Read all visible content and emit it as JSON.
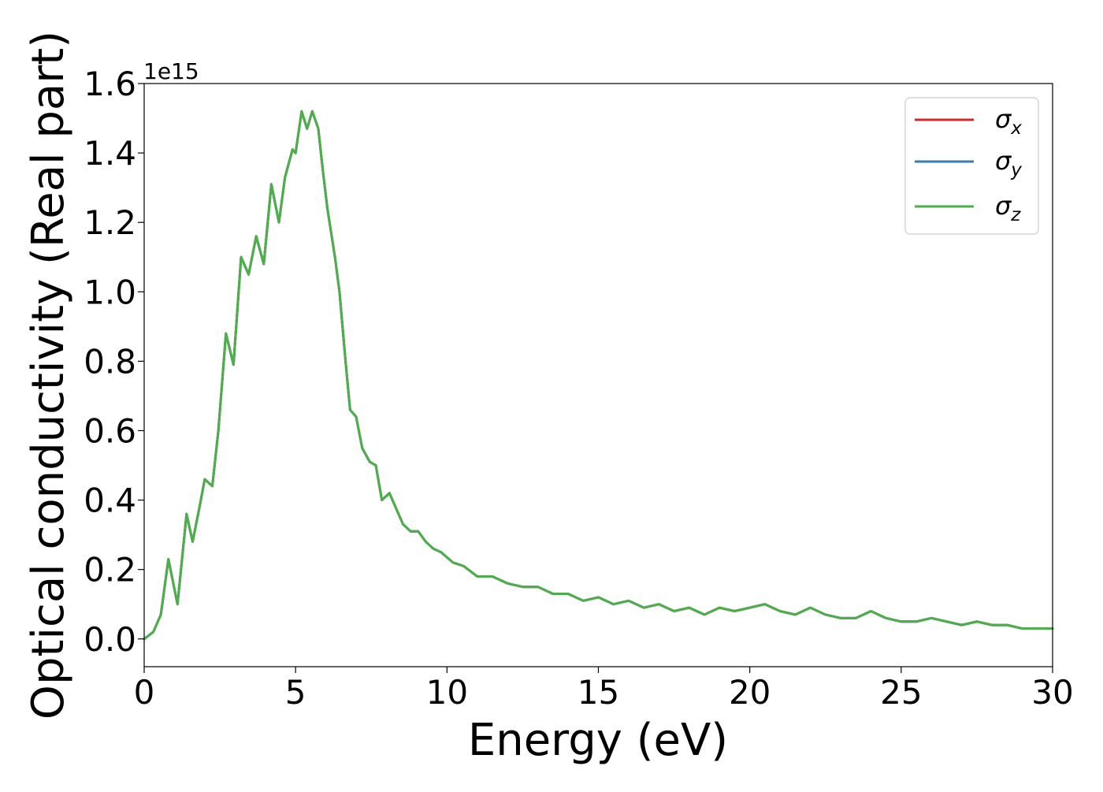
{
  "chart_data": {
    "type": "line",
    "xlabel": "Energy (eV)",
    "ylabel": "Optical conductivity (Real part)",
    "y_multiplier_label": "1e15",
    "xlim": [
      0,
      30
    ],
    "ylim": [
      -0.08,
      1.6
    ],
    "x_ticks": [
      0,
      5,
      10,
      15,
      20,
      25,
      30
    ],
    "x_tick_labels": [
      "0",
      "5",
      "10",
      "15",
      "20",
      "25",
      "30"
    ],
    "y_ticks": [
      0.0,
      0.2,
      0.4,
      0.6,
      0.8,
      1.0,
      1.2,
      1.4,
      1.6
    ],
    "y_tick_labels": [
      "0.0",
      "0.2",
      "0.4",
      "0.6",
      "0.8",
      "1.0",
      "1.2",
      "1.4",
      "1.6"
    ],
    "grid": false,
    "legend_position": "top-right",
    "x": [
      0,
      0.3,
      0.55,
      0.8,
      1.1,
      1.4,
      1.6,
      1.85,
      2.0,
      2.25,
      2.45,
      2.7,
      2.95,
      3.2,
      3.45,
      3.7,
      3.95,
      4.2,
      4.45,
      4.65,
      4.9,
      5.0,
      5.2,
      5.38,
      5.55,
      5.75,
      5.9,
      6.05,
      6.3,
      6.45,
      6.65,
      6.8,
      7.0,
      7.2,
      7.45,
      7.65,
      7.85,
      8.1,
      8.3,
      8.55,
      8.8,
      9.05,
      9.3,
      9.55,
      9.8,
      10.2,
      10.55,
      11.0,
      11.5,
      12.0,
      12.5,
      13.0,
      13.5,
      14.0,
      14.5,
      15.0,
      15.5,
      16.0,
      16.5,
      17.0,
      17.5,
      18.0,
      18.5,
      19.0,
      19.5,
      20.0,
      20.5,
      21.0,
      21.5,
      22.0,
      22.5,
      23.0,
      23.5,
      24.0,
      24.5,
      25.0,
      25.5,
      26.0,
      26.5,
      27.0,
      27.5,
      28.0,
      28.5,
      29.0,
      29.5,
      30.0
    ],
    "series": [
      {
        "name": "σx",
        "subscript": "x",
        "color": "#d62728",
        "values": [
          0.0,
          0.02,
          0.07,
          0.23,
          0.1,
          0.36,
          0.28,
          0.39,
          0.46,
          0.44,
          0.6,
          0.88,
          0.79,
          1.1,
          1.05,
          1.16,
          1.08,
          1.31,
          1.2,
          1.33,
          1.41,
          1.4,
          1.52,
          1.47,
          1.52,
          1.47,
          1.35,
          1.24,
          1.1,
          1.0,
          0.8,
          0.66,
          0.64,
          0.55,
          0.51,
          0.5,
          0.4,
          0.42,
          0.38,
          0.33,
          0.31,
          0.31,
          0.28,
          0.26,
          0.25,
          0.22,
          0.21,
          0.18,
          0.18,
          0.16,
          0.15,
          0.15,
          0.13,
          0.13,
          0.11,
          0.12,
          0.1,
          0.11,
          0.09,
          0.1,
          0.08,
          0.09,
          0.07,
          0.09,
          0.08,
          0.09,
          0.1,
          0.08,
          0.07,
          0.09,
          0.07,
          0.06,
          0.06,
          0.08,
          0.06,
          0.05,
          0.05,
          0.06,
          0.05,
          0.04,
          0.05,
          0.04,
          0.04,
          0.03,
          0.03,
          0.03
        ]
      },
      {
        "name": "σy",
        "subscript": "y",
        "color": "#377eb8",
        "values": [
          0.0,
          0.02,
          0.07,
          0.23,
          0.1,
          0.36,
          0.28,
          0.39,
          0.46,
          0.44,
          0.6,
          0.88,
          0.79,
          1.1,
          1.05,
          1.16,
          1.08,
          1.31,
          1.2,
          1.33,
          1.41,
          1.4,
          1.52,
          1.47,
          1.52,
          1.47,
          1.35,
          1.24,
          1.1,
          1.0,
          0.8,
          0.66,
          0.64,
          0.55,
          0.51,
          0.5,
          0.4,
          0.42,
          0.38,
          0.33,
          0.31,
          0.31,
          0.28,
          0.26,
          0.25,
          0.22,
          0.21,
          0.18,
          0.18,
          0.16,
          0.15,
          0.15,
          0.13,
          0.13,
          0.11,
          0.12,
          0.1,
          0.11,
          0.09,
          0.1,
          0.08,
          0.09,
          0.07,
          0.09,
          0.08,
          0.09,
          0.1,
          0.08,
          0.07,
          0.09,
          0.07,
          0.06,
          0.06,
          0.08,
          0.06,
          0.05,
          0.05,
          0.06,
          0.05,
          0.04,
          0.05,
          0.04,
          0.04,
          0.03,
          0.03,
          0.03
        ]
      },
      {
        "name": "σz",
        "subscript": "z",
        "color": "#4daf4a",
        "values": [
          0.0,
          0.02,
          0.07,
          0.23,
          0.1,
          0.36,
          0.28,
          0.39,
          0.46,
          0.44,
          0.6,
          0.88,
          0.79,
          1.1,
          1.05,
          1.16,
          1.08,
          1.31,
          1.2,
          1.33,
          1.41,
          1.4,
          1.52,
          1.47,
          1.52,
          1.47,
          1.35,
          1.24,
          1.1,
          1.0,
          0.8,
          0.66,
          0.64,
          0.55,
          0.51,
          0.5,
          0.4,
          0.42,
          0.38,
          0.33,
          0.31,
          0.31,
          0.28,
          0.26,
          0.25,
          0.22,
          0.21,
          0.18,
          0.18,
          0.16,
          0.15,
          0.15,
          0.13,
          0.13,
          0.11,
          0.12,
          0.1,
          0.11,
          0.09,
          0.1,
          0.08,
          0.09,
          0.07,
          0.09,
          0.08,
          0.09,
          0.1,
          0.08,
          0.07,
          0.09,
          0.07,
          0.06,
          0.06,
          0.08,
          0.06,
          0.05,
          0.05,
          0.06,
          0.05,
          0.04,
          0.05,
          0.04,
          0.04,
          0.03,
          0.03,
          0.03
        ]
      }
    ]
  }
}
